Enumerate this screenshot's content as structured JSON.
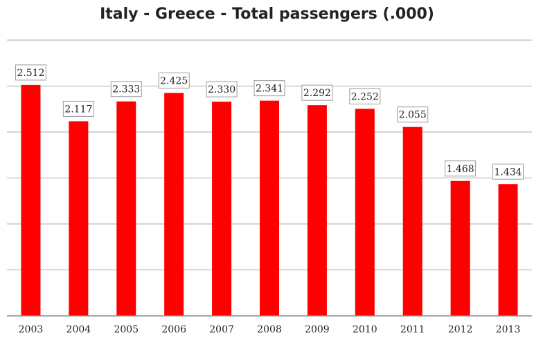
{
  "chart_data": {
    "type": "bar",
    "title": "Italy - Greece - Total passengers (.000)",
    "xlabel": "",
    "ylabel": "",
    "categories": [
      "2003",
      "2004",
      "2005",
      "2006",
      "2007",
      "2008",
      "2009",
      "2010",
      "2011",
      "2012",
      "2013"
    ],
    "values": [
      2512,
      2117,
      2333,
      2425,
      2330,
      2341,
      2292,
      2252,
      2055,
      1468,
      1434
    ],
    "data_labels": [
      "2.512",
      "2.117",
      "2.333",
      "2.425",
      "2.330",
      "2.341",
      "2.292",
      "2.252",
      "2.055",
      "1.468",
      "1.434"
    ],
    "ylim": [
      0,
      3000
    ],
    "grid": true,
    "legend": "none",
    "bar_color": "#ff0000"
  }
}
